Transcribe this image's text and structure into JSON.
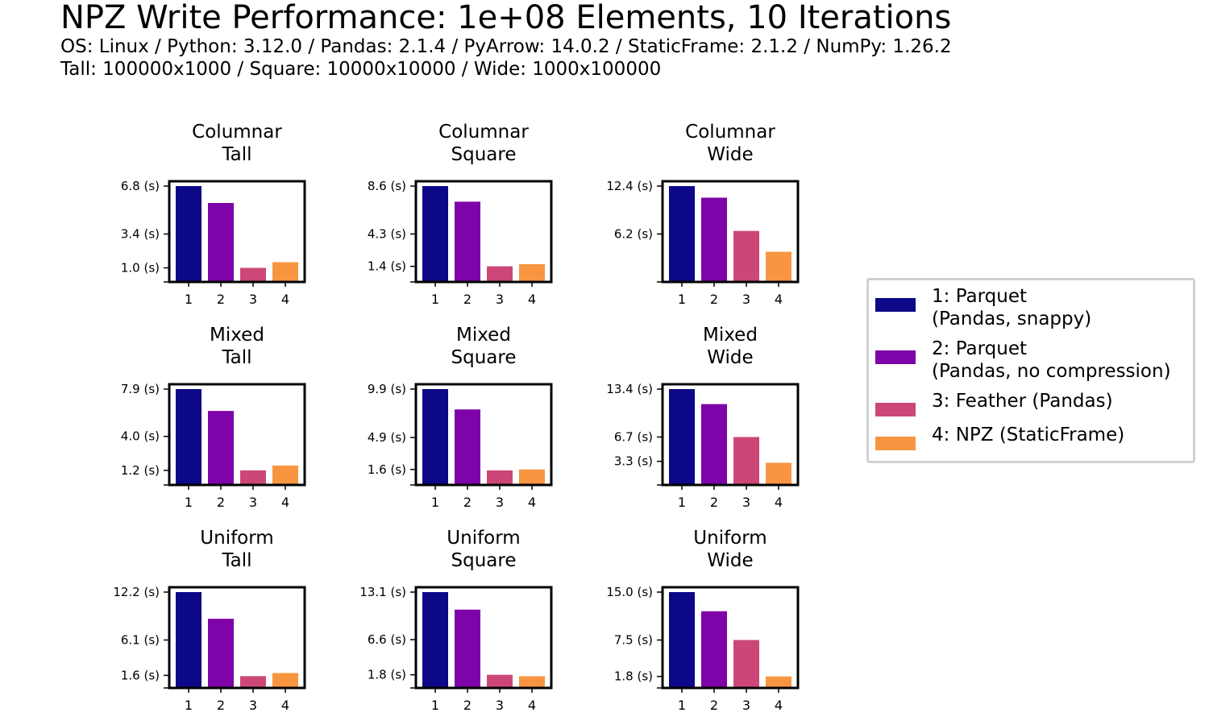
{
  "title": "NPZ Write Performance: 1e+08 Elements, 10 Iterations",
  "subtitle_lines": [
    "OS: Linux / Python: 3.12.0 / Pandas: 2.1.4 / PyArrow: 14.0.2 / StaticFrame: 2.1.2 / NumPy: 1.26.2",
    "Tall: 100000x1000 / Square: 10000x10000 / Wide: 1000x100000"
  ],
  "colors": [
    "#0d0887",
    "#7e03a8",
    "#cc4778",
    "#f89540"
  ],
  "legend": [
    {
      "label": "1: Parquet\n(Pandas, snappy)",
      "color": "#0d0887"
    },
    {
      "label": "2: Parquet\n(Pandas, no compression)",
      "color": "#7e03a8"
    },
    {
      "label": "3: Feather (Pandas)",
      "color": "#cc4778"
    },
    {
      "label": "4: NPZ (StaticFrame)",
      "color": "#f89540"
    }
  ],
  "chart_data": [
    {
      "type": "bar",
      "title": "Columnar\nTall",
      "categories": [
        "1",
        "2",
        "3",
        "4"
      ],
      "values": [
        6.8,
        5.6,
        1.0,
        1.4
      ],
      "yticks": [
        1.0,
        3.4,
        6.8
      ],
      "ytick_labels": [
        "1.0 (s)",
        "3.4 (s)",
        "6.8 (s)"
      ]
    },
    {
      "type": "bar",
      "title": "Columnar\nSquare",
      "categories": [
        "1",
        "2",
        "3",
        "4"
      ],
      "values": [
        8.6,
        7.2,
        1.4,
        1.6
      ],
      "yticks": [
        1.4,
        4.3,
        8.6
      ],
      "ytick_labels": [
        "1.4 (s)",
        "4.3 (s)",
        "8.6 (s)"
      ]
    },
    {
      "type": "bar",
      "title": "Columnar\nWide",
      "categories": [
        "1",
        "2",
        "3",
        "4"
      ],
      "values": [
        12.4,
        10.9,
        6.6,
        3.9
      ],
      "yticks": [
        6.2,
        12.4
      ],
      "ytick_labels": [
        "6.2 (s)",
        "12.4 (s)"
      ]
    },
    {
      "type": "bar",
      "title": "Mixed\nTall",
      "categories": [
        "1",
        "2",
        "3",
        "4"
      ],
      "values": [
        7.9,
        6.1,
        1.2,
        1.6
      ],
      "yticks": [
        1.2,
        4.0,
        7.9
      ],
      "ytick_labels": [
        "1.2 (s)",
        "4.0 (s)",
        "7.9 (s)"
      ]
    },
    {
      "type": "bar",
      "title": "Mixed\nSquare",
      "categories": [
        "1",
        "2",
        "3",
        "4"
      ],
      "values": [
        9.9,
        7.8,
        1.5,
        1.6
      ],
      "yticks": [
        1.6,
        4.9,
        9.9
      ],
      "ytick_labels": [
        "1.6 (s)",
        "4.9 (s)",
        "9.9 (s)"
      ]
    },
    {
      "type": "bar",
      "title": "Mixed\nWide",
      "categories": [
        "1",
        "2",
        "3",
        "4"
      ],
      "values": [
        13.4,
        11.3,
        6.7,
        3.1
      ],
      "yticks": [
        3.3,
        6.7,
        13.4
      ],
      "ytick_labels": [
        "3.3 (s)",
        "6.7 (s)",
        "13.4 (s)"
      ]
    },
    {
      "type": "bar",
      "title": "Uniform\nTall",
      "categories": [
        "1",
        "2",
        "3",
        "4"
      ],
      "values": [
        12.2,
        8.8,
        1.5,
        1.9
      ],
      "yticks": [
        1.6,
        6.1,
        12.2
      ],
      "ytick_labels": [
        "1.6 (s)",
        "6.1 (s)",
        "12.2 (s)"
      ]
    },
    {
      "type": "bar",
      "title": "Uniform\nSquare",
      "categories": [
        "1",
        "2",
        "3",
        "4"
      ],
      "values": [
        13.1,
        10.7,
        1.8,
        1.6
      ],
      "yticks": [
        1.8,
        6.6,
        13.1
      ],
      "ytick_labels": [
        "1.8 (s)",
        "6.6 (s)",
        "13.1 (s)"
      ]
    },
    {
      "type": "bar",
      "title": "Uniform\nWide",
      "categories": [
        "1",
        "2",
        "3",
        "4"
      ],
      "values": [
        15.0,
        12.0,
        7.5,
        1.8
      ],
      "yticks": [
        1.8,
        7.5,
        15.0
      ],
      "ytick_labels": [
        "1.8 (s)",
        "7.5 (s)",
        "15.0 (s)"
      ]
    }
  ]
}
